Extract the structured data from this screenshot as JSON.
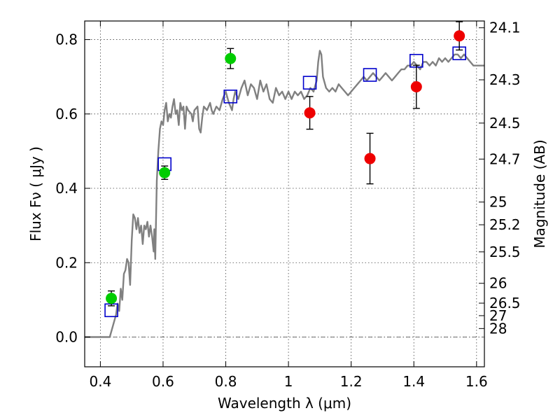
{
  "chart_data": {
    "type": "scatter",
    "xlabel": "Wavelength  λ (μm)",
    "ylabel": "Flux  Fν  ( μJy )",
    "y2label": "Magnitude (AB)",
    "xlim": [
      0.35,
      1.625
    ],
    "ylim": [
      -0.08,
      0.85
    ],
    "xticks": [
      0.4,
      0.6,
      0.8,
      1.0,
      1.2,
      1.4,
      1.6
    ],
    "xtick_labels": [
      "0.4",
      "0.6",
      "0.8",
      "1",
      "1.2",
      "1.4",
      "1.6"
    ],
    "yticks": [
      0.0,
      0.2,
      0.4,
      0.6,
      0.8
    ],
    "ytick_labels": [
      "0.0",
      "0.2",
      "0.4",
      "0.6",
      "0.8"
    ],
    "magnitude_ticks": [
      {
        "label": "24.1",
        "value": 24.1
      },
      {
        "label": "24.3",
        "value": 24.3
      },
      {
        "label": "24.5",
        "value": 24.5
      },
      {
        "label": "24.7",
        "value": 24.7
      },
      {
        "label": "25",
        "value": 25.0
      },
      {
        "label": "25.2",
        "value": 25.2
      },
      {
        "label": "25.5",
        "value": 25.5
      },
      {
        "label": "26",
        "value": 26.0
      },
      {
        "label": "26.5",
        "value": 26.5
      },
      {
        "label": "27",
        "value": 27.0
      },
      {
        "label": "28",
        "value": 28.0
      }
    ],
    "grid": true,
    "zero_line": true,
    "colors": {
      "model": "#808080",
      "green": "#00cc00",
      "red": "#ee0000",
      "box": "#0000cc",
      "errorbar": "#000000"
    },
    "series": [
      {
        "kind": "line",
        "points": [
          [
            0.35,
            0.0
          ],
          [
            0.43,
            0.0
          ],
          [
            0.44,
            0.03
          ],
          [
            0.45,
            0.06
          ],
          [
            0.455,
            0.09
          ],
          [
            0.46,
            0.07
          ],
          [
            0.465,
            0.13
          ],
          [
            0.47,
            0.1
          ],
          [
            0.475,
            0.17
          ],
          [
            0.48,
            0.18
          ],
          [
            0.485,
            0.21
          ],
          [
            0.49,
            0.2
          ],
          [
            0.495,
            0.14
          ],
          [
            0.5,
            0.26
          ],
          [
            0.505,
            0.33
          ],
          [
            0.51,
            0.32
          ],
          [
            0.515,
            0.29
          ],
          [
            0.52,
            0.32
          ],
          [
            0.525,
            0.28
          ],
          [
            0.53,
            0.3
          ],
          [
            0.535,
            0.25
          ],
          [
            0.54,
            0.3
          ],
          [
            0.545,
            0.29
          ],
          [
            0.55,
            0.31
          ],
          [
            0.555,
            0.27
          ],
          [
            0.56,
            0.3
          ],
          [
            0.565,
            0.27
          ],
          [
            0.57,
            0.23
          ],
          [
            0.572,
            0.29
          ],
          [
            0.575,
            0.21
          ],
          [
            0.58,
            0.42
          ],
          [
            0.585,
            0.5
          ],
          [
            0.59,
            0.56
          ],
          [
            0.595,
            0.58
          ],
          [
            0.6,
            0.57
          ],
          [
            0.605,
            0.61
          ],
          [
            0.61,
            0.63
          ],
          [
            0.615,
            0.58
          ],
          [
            0.62,
            0.6
          ],
          [
            0.625,
            0.59
          ],
          [
            0.63,
            0.62
          ],
          [
            0.635,
            0.64
          ],
          [
            0.64,
            0.6
          ],
          [
            0.645,
            0.61
          ],
          [
            0.65,
            0.57
          ],
          [
            0.655,
            0.63
          ],
          [
            0.66,
            0.61
          ],
          [
            0.665,
            0.62
          ],
          [
            0.67,
            0.56
          ],
          [
            0.675,
            0.62
          ],
          [
            0.68,
            0.61
          ],
          [
            0.69,
            0.6
          ],
          [
            0.695,
            0.58
          ],
          [
            0.7,
            0.61
          ],
          [
            0.71,
            0.62
          ],
          [
            0.715,
            0.56
          ],
          [
            0.72,
            0.55
          ],
          [
            0.725,
            0.59
          ],
          [
            0.73,
            0.62
          ],
          [
            0.74,
            0.61
          ],
          [
            0.75,
            0.63
          ],
          [
            0.755,
            0.61
          ],
          [
            0.76,
            0.6
          ],
          [
            0.77,
            0.62
          ],
          [
            0.78,
            0.61
          ],
          [
            0.79,
            0.64
          ],
          [
            0.8,
            0.66
          ],
          [
            0.81,
            0.63
          ],
          [
            0.82,
            0.61
          ],
          [
            0.825,
            0.64
          ],
          [
            0.83,
            0.66
          ],
          [
            0.84,
            0.64
          ],
          [
            0.85,
            0.67
          ],
          [
            0.86,
            0.69
          ],
          [
            0.87,
            0.65
          ],
          [
            0.88,
            0.68
          ],
          [
            0.89,
            0.67
          ],
          [
            0.9,
            0.64
          ],
          [
            0.91,
            0.69
          ],
          [
            0.92,
            0.66
          ],
          [
            0.93,
            0.68
          ],
          [
            0.94,
            0.64
          ],
          [
            0.95,
            0.63
          ],
          [
            0.96,
            0.67
          ],
          [
            0.97,
            0.65
          ],
          [
            0.98,
            0.66
          ],
          [
            0.99,
            0.64
          ],
          [
            1.0,
            0.66
          ],
          [
            1.01,
            0.64
          ],
          [
            1.02,
            0.66
          ],
          [
            1.03,
            0.65
          ],
          [
            1.04,
            0.66
          ],
          [
            1.05,
            0.64
          ],
          [
            1.06,
            0.65
          ],
          [
            1.07,
            0.67
          ],
          [
            1.08,
            0.66
          ],
          [
            1.09,
            0.69
          ],
          [
            1.095,
            0.74
          ],
          [
            1.1,
            0.77
          ],
          [
            1.105,
            0.76
          ],
          [
            1.11,
            0.7
          ],
          [
            1.12,
            0.67
          ],
          [
            1.13,
            0.66
          ],
          [
            1.14,
            0.67
          ],
          [
            1.15,
            0.66
          ],
          [
            1.16,
            0.68
          ],
          [
            1.17,
            0.67
          ],
          [
            1.18,
            0.66
          ],
          [
            1.19,
            0.65
          ],
          [
            1.2,
            0.66
          ],
          [
            1.21,
            0.67
          ],
          [
            1.22,
            0.68
          ],
          [
            1.23,
            0.69
          ],
          [
            1.24,
            0.7
          ],
          [
            1.25,
            0.69
          ],
          [
            1.26,
            0.7
          ],
          [
            1.27,
            0.71
          ],
          [
            1.28,
            0.7
          ],
          [
            1.29,
            0.69
          ],
          [
            1.3,
            0.7
          ],
          [
            1.31,
            0.71
          ],
          [
            1.32,
            0.7
          ],
          [
            1.33,
            0.69
          ],
          [
            1.34,
            0.7
          ],
          [
            1.35,
            0.71
          ],
          [
            1.36,
            0.72
          ],
          [
            1.37,
            0.72
          ],
          [
            1.38,
            0.73
          ],
          [
            1.39,
            0.73
          ],
          [
            1.4,
            0.74
          ],
          [
            1.41,
            0.73
          ],
          [
            1.42,
            0.72
          ],
          [
            1.43,
            0.74
          ],
          [
            1.44,
            0.74
          ],
          [
            1.45,
            0.73
          ],
          [
            1.46,
            0.74
          ],
          [
            1.47,
            0.73
          ],
          [
            1.48,
            0.75
          ],
          [
            1.49,
            0.74
          ],
          [
            1.5,
            0.75
          ],
          [
            1.51,
            0.74
          ],
          [
            1.52,
            0.75
          ],
          [
            1.53,
            0.76
          ],
          [
            1.54,
            0.76
          ],
          [
            1.55,
            0.75
          ],
          [
            1.56,
            0.76
          ],
          [
            1.57,
            0.75
          ],
          [
            1.58,
            0.74
          ],
          [
            1.59,
            0.73
          ],
          [
            1.6,
            0.73
          ],
          [
            1.625,
            0.73
          ]
        ]
      },
      {
        "kind": "boxes",
        "points": [
          [
            0.435,
            0.072
          ],
          [
            0.605,
            0.465
          ],
          [
            0.815,
            0.647
          ],
          [
            1.068,
            0.684
          ],
          [
            1.26,
            0.705
          ],
          [
            1.408,
            0.743
          ],
          [
            1.545,
            0.763
          ]
        ]
      },
      {
        "kind": "points",
        "color_key": "green",
        "points": [
          {
            "x": 0.435,
            "y": 0.104,
            "err": 0.02
          },
          {
            "x": 0.605,
            "y": 0.442,
            "err": 0.018
          },
          {
            "x": 0.815,
            "y": 0.749,
            "err": 0.027
          }
        ]
      },
      {
        "kind": "points",
        "color_key": "red",
        "points": [
          {
            "x": 1.068,
            "y": 0.603,
            "err": 0.044
          },
          {
            "x": 1.26,
            "y": 0.48,
            "err": 0.068
          },
          {
            "x": 1.408,
            "y": 0.673,
            "err": 0.058
          },
          {
            "x": 1.545,
            "y": 0.81,
            "err": 0.038
          }
        ]
      }
    ]
  }
}
